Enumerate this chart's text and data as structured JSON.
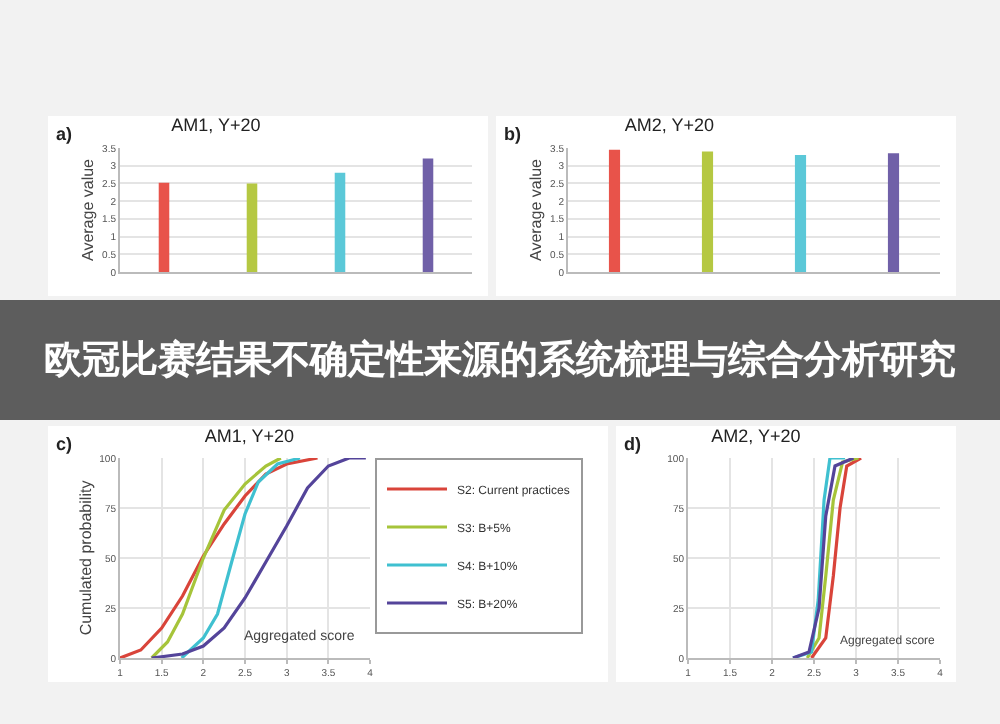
{
  "chart_data": [
    {
      "type": "bar",
      "title": "AM1, Y+20",
      "annotations": [
        "a)"
      ],
      "ylabel": "Average value",
      "relative": false,
      "categories": [
        null,
        null,
        null,
        null
      ],
      "values": [
        2.52,
        2.5,
        2.8,
        3.2
      ],
      "colors": [
        "#e8534a",
        "#b5c842",
        "#5bc8d8",
        "#7060a8"
      ],
      "ylim": [
        0,
        3.5
      ],
      "yticks": [
        0,
        0.5,
        1,
        1.5,
        2,
        2.5,
        3,
        3.5
      ],
      "grid": "y",
      "legend": false
    },
    {
      "type": "bar",
      "title": "AM2, Y+20",
      "annotations": [
        "b)"
      ],
      "ylabel": "Average value",
      "categories": [
        null,
        null,
        null,
        null
      ],
      "values": [
        3.45,
        3.4,
        3.3,
        3.35
      ],
      "colors": [
        "#e8534a",
        "#b5c842",
        "#5bc8d8",
        "#7060a8"
      ],
      "ylim": [
        0,
        3.5
      ],
      "yticks": [
        0,
        0.5,
        1,
        1.5,
        2,
        2.5,
        3,
        3.5
      ],
      "grid": "y",
      "legend": false
    },
    {
      "type": "line",
      "title": "AM1, Y+20",
      "annotations": [
        "c)"
      ],
      "xlabel": "Aggregated score",
      "ylabel": "Cumulated probability",
      "xlim": [
        1,
        4
      ],
      "xticks": [
        1,
        1.5,
        2,
        2.5,
        3,
        3.5,
        4
      ],
      "ylim": [
        0,
        100
      ],
      "yticks": [
        0,
        25,
        50,
        75,
        100
      ],
      "grid": true,
      "legend": "right",
      "marker": "none",
      "series": [
        {
          "name": "S2: Current practices",
          "color": "#d9443a",
          "x": [
            1,
            1.25,
            1.5,
            1.75,
            2,
            2.25,
            2.5,
            2.75,
            3,
            3.37
          ],
          "values": [
            0,
            4,
            15,
            31,
            51,
            67,
            81,
            92,
            97,
            100
          ]
        },
        {
          "name": "S3: B+5%",
          "color": "#a6c43a",
          "x": [
            1.38,
            1.57,
            1.75,
            2,
            2.25,
            2.5,
            2.75,
            2.93
          ],
          "values": [
            0,
            8,
            22,
            50,
            74,
            87,
            96,
            100
          ]
        },
        {
          "name": "S4: B+10%",
          "color": "#3fc0d0",
          "x": [
            1.74,
            2,
            2.17,
            2.34,
            2.5,
            2.66,
            2.89,
            3.16
          ],
          "values": [
            0,
            10,
            22,
            48,
            72,
            88,
            97,
            100
          ]
        },
        {
          "name": "S5: B+20%",
          "color": "#54449a",
          "x": [
            1.38,
            1.75,
            2,
            2.25,
            2.5,
            2.75,
            3,
            3.25,
            3.5,
            3.75,
            3.95
          ],
          "values": [
            0,
            2,
            6,
            15,
            30,
            48,
            66,
            85,
            96,
            100,
            100
          ]
        }
      ]
    },
    {
      "type": "line",
      "title": "AM2, Y+20",
      "annotations": [
        "d)",
        "Aggregated score"
      ],
      "xlim": [
        1,
        4
      ],
      "xticks": [
        1,
        1.5,
        2,
        2.5,
        3,
        3.5,
        4
      ],
      "ylim": [
        0,
        100
      ],
      "yticks": [
        0,
        25,
        50,
        75,
        100
      ],
      "grid": true,
      "legend": false,
      "marker": "none",
      "series": [
        {
          "color": "#d9443a",
          "x": [
            2.47,
            2.64,
            2.73,
            2.81,
            2.89,
            3.06
          ],
          "values": [
            0,
            10,
            41,
            75,
            96,
            100
          ]
        },
        {
          "color": "#a6c43a",
          "x": [
            2.42,
            2.56,
            2.64,
            2.73,
            2.84,
            3.03
          ],
          "values": [
            0,
            10,
            41,
            79,
            98,
            100
          ]
        },
        {
          "color": "#3fc0d0",
          "x": [
            2.25,
            2.47,
            2.55,
            2.62,
            2.69,
            2.87
          ],
          "values": [
            0,
            3,
            29,
            79,
            100,
            100
          ]
        },
        {
          "color": "#54449a",
          "x": [
            2.25,
            2.44,
            2.56,
            2.64,
            2.75,
            2.97
          ],
          "values": [
            0,
            3,
            25,
            71,
            96,
            100
          ]
        }
      ]
    },
    {
      "type": "other",
      "title": "欧冠比赛结果不确定性来源的系统梳理与综合分析研究"
    }
  ]
}
